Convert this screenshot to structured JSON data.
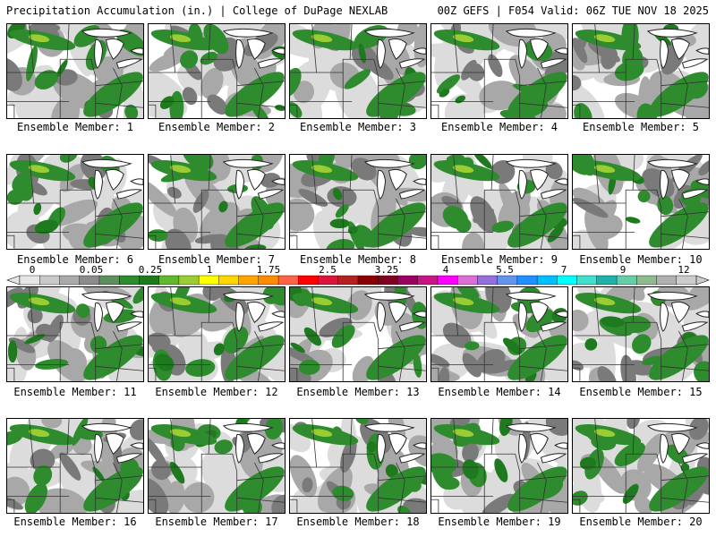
{
  "header": {
    "title": "Precipitation Accumulation (in.) | College of DuPage NEXLAB",
    "valid": "00Z GEFS | F054 Valid: 06Z TUE NOV 18 2025"
  },
  "colorbar": {
    "labels": [
      "0",
      "0.05",
      "0.25",
      "1",
      "1.75",
      "2.5",
      "3.25",
      "4",
      "5.5",
      "7",
      "9",
      "12"
    ],
    "colors": [
      "#e6e6e6",
      "#c9c9c9",
      "#aaaaaa",
      "#8c8c8c",
      "#5e8f5e",
      "#2e8b2e",
      "#1f7a1f",
      "#5fb82e",
      "#9acd32",
      "#ffff00",
      "#ffd700",
      "#ffa500",
      "#ff8c00",
      "#ff6347",
      "#ff0000",
      "#dc143c",
      "#b22222",
      "#8b0000",
      "#800020",
      "#9b0060",
      "#c71585",
      "#ff00ff",
      "#da70d6",
      "#9370db",
      "#6495ed",
      "#1e90ff",
      "#00bfff",
      "#00ffff",
      "#40e0d0",
      "#20b2aa",
      "#66cdaa",
      "#8fbc8f",
      "#b0b0b0",
      "#cccccc"
    ]
  },
  "members": [
    {
      "label": "Ensemble Member: 1"
    },
    {
      "label": "Ensemble Member: 2"
    },
    {
      "label": "Ensemble Member: 3"
    },
    {
      "label": "Ensemble Member: 4"
    },
    {
      "label": "Ensemble Member: 5"
    },
    {
      "label": "Ensemble Member: 6"
    },
    {
      "label": "Ensemble Member: 7"
    },
    {
      "label": "Ensemble Member: 8"
    },
    {
      "label": "Ensemble Member: 9"
    },
    {
      "label": "Ensemble Member: 10"
    },
    {
      "label": "Ensemble Member: 11"
    },
    {
      "label": "Ensemble Member: 12"
    },
    {
      "label": "Ensemble Member: 13"
    },
    {
      "label": "Ensemble Member: 14"
    },
    {
      "label": "Ensemble Member: 15"
    },
    {
      "label": "Ensemble Member: 16"
    },
    {
      "label": "Ensemble Member: 17"
    },
    {
      "label": "Ensemble Member: 18"
    },
    {
      "label": "Ensemble Member: 19"
    },
    {
      "label": "Ensemble Member: 20"
    }
  ],
  "colors": {
    "light": "#dcdcdc",
    "mid": "#a8a8a8",
    "dark": "#7a7a7a",
    "green": "#2e8b2e",
    "deep_green": "#1f7a1f",
    "yellow_green": "#9acd32"
  }
}
